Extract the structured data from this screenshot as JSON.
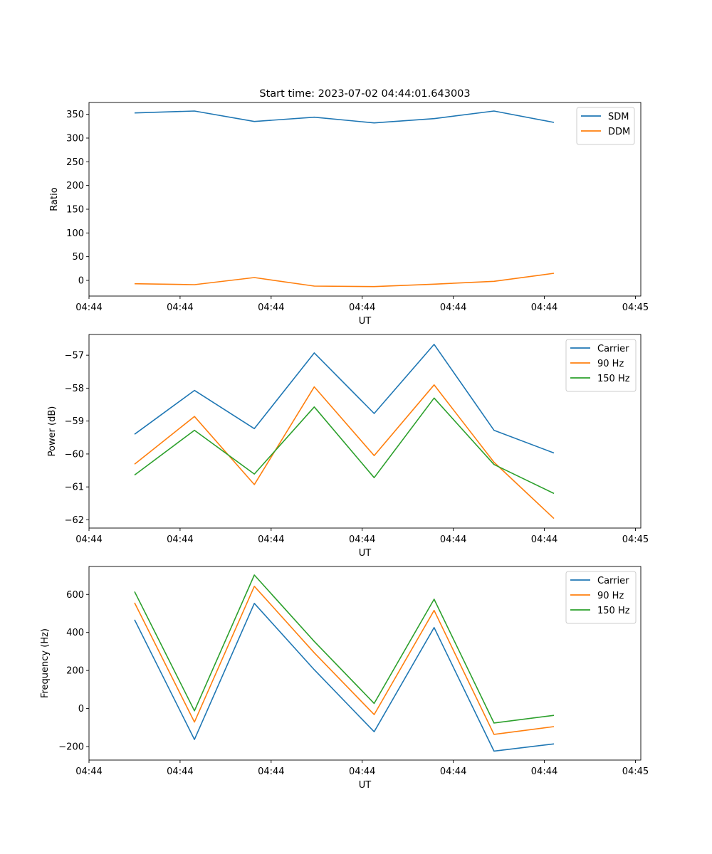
{
  "chart_data": [
    {
      "type": "line",
      "title": "Start time: 2023-07-02 04:44:01.643003",
      "xlabel": "UT",
      "ylabel": "Ratio",
      "ylim": [
        -33,
        375
      ],
      "x": [
        0,
        1,
        2,
        3,
        4,
        5,
        6,
        7
      ],
      "xlim": [
        -0.76,
        8.45
      ],
      "xticks": [
        -0.76,
        0.76,
        2.28,
        3.8,
        5.32,
        6.84,
        8.36
      ],
      "xtick_labels": [
        "04:44",
        "04:44",
        "04:44",
        "04:44",
        "04:44",
        "04:44",
        "04:45"
      ],
      "yticks": [
        0,
        50,
        100,
        150,
        200,
        250,
        300,
        350
      ],
      "ytick_labels": [
        "0",
        "50",
        "100",
        "150",
        "200",
        "250",
        "300",
        "350"
      ],
      "legend_position": "top-right",
      "series": [
        {
          "name": "SDM",
          "color": "#1f77b4",
          "values": [
            353,
            357,
            335,
            344,
            332,
            341,
            357,
            333
          ]
        },
        {
          "name": "DDM",
          "color": "#ff7f0e",
          "values": [
            -7,
            -9,
            6,
            -12,
            -13,
            -8,
            -2,
            15
          ]
        }
      ]
    },
    {
      "type": "line",
      "title": "",
      "xlabel": "UT",
      "ylabel": "Power (dB)",
      "ylim": [
        -62.25,
        -56.37
      ],
      "x": [
        0,
        1,
        2,
        3,
        4,
        5,
        6,
        7
      ],
      "xlim": [
        -0.76,
        8.45
      ],
      "xticks": [
        -0.76,
        0.76,
        2.28,
        3.8,
        5.32,
        6.84,
        8.36
      ],
      "xtick_labels": [
        "04:44",
        "04:44",
        "04:44",
        "04:44",
        "04:44",
        "04:44",
        "04:45"
      ],
      "yticks": [
        -62,
        -61,
        -60,
        -59,
        -58,
        -57
      ],
      "ytick_labels": [
        "−62",
        "−61",
        "−60",
        "−59",
        "−58",
        "−57"
      ],
      "legend_position": "top-right",
      "series": [
        {
          "name": "Carrier",
          "color": "#1f77b4",
          "values": [
            -59.4,
            -58.07,
            -59.23,
            -56.93,
            -58.77,
            -56.67,
            -59.28,
            -59.97
          ]
        },
        {
          "name": "90 Hz",
          "color": "#ff7f0e",
          "values": [
            -60.31,
            -58.86,
            -60.93,
            -57.96,
            -60.05,
            -57.9,
            -60.25,
            -61.96
          ]
        },
        {
          "name": "150 Hz",
          "color": "#2ca02c",
          "values": [
            -60.64,
            -59.28,
            -60.61,
            -58.57,
            -60.72,
            -58.3,
            -60.32,
            -61.2
          ]
        }
      ]
    },
    {
      "type": "line",
      "title": "",
      "xlabel": "UT",
      "ylabel": "Frequency (Hz)",
      "ylim": [
        -271,
        747
      ],
      "x": [
        0,
        1,
        2,
        3,
        4,
        5,
        6,
        7
      ],
      "xlim": [
        -0.76,
        8.45
      ],
      "xticks": [
        -0.76,
        0.76,
        2.28,
        3.8,
        5.32,
        6.84,
        8.36
      ],
      "xtick_labels": [
        "04:44",
        "04:44",
        "04:44",
        "04:44",
        "04:44",
        "04:44",
        "04:45"
      ],
      "yticks": [
        -200,
        0,
        200,
        400,
        600
      ],
      "ytick_labels": [
        "−200",
        "0",
        "200",
        "400",
        "600"
      ],
      "legend_position": "top-right",
      "series": [
        {
          "name": "Carrier",
          "color": "#1f77b4",
          "values": [
            467,
            -163,
            553,
            204,
            -122,
            426,
            -224,
            -186
          ]
        },
        {
          "name": "90 Hz",
          "color": "#ff7f0e",
          "values": [
            556,
            -71,
            643,
            293,
            -32,
            516,
            -136,
            -95
          ]
        },
        {
          "name": "150 Hz",
          "color": "#2ca02c",
          "values": [
            615,
            -12,
            702,
            353,
            27,
            575,
            -76,
            -36
          ]
        }
      ]
    }
  ]
}
